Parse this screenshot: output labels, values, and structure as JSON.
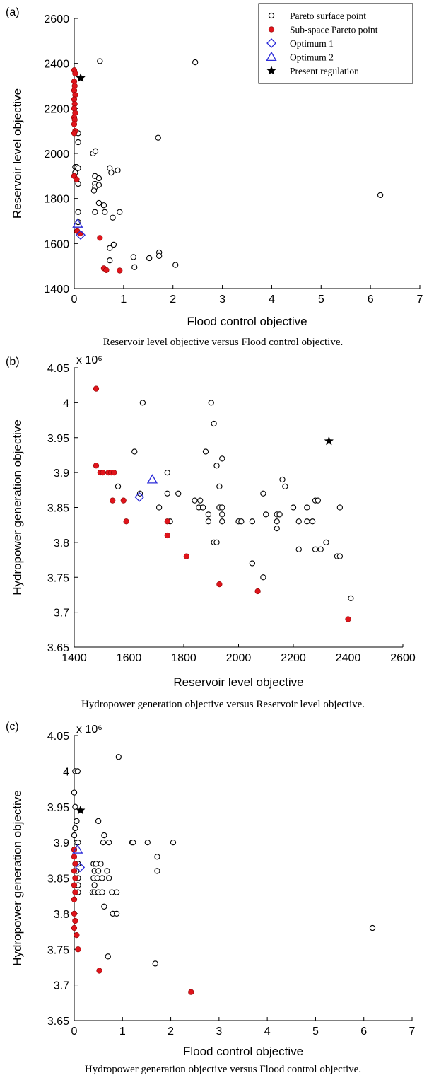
{
  "chart_data": [
    {
      "type": "scatter",
      "panel_label": "(a)",
      "xlabel": "Flood control objective",
      "ylabel": "Reservoir level objective",
      "xlim": [
        0,
        7
      ],
      "ylim": [
        1400,
        2600
      ],
      "xticks": [
        0,
        1,
        2,
        3,
        4,
        5,
        6,
        7
      ],
      "yticks": [
        1400,
        1600,
        1800,
        2000,
        2200,
        2400,
        2600
      ],
      "multiplier": "",
      "caption": "Reservoir level objective versus Flood control objective.",
      "legend": {
        "placement": "top-right",
        "entries": [
          "Pareto surface point",
          "Sub-space Pareto point",
          "Optimum 1",
          "Optimum 2",
          "Present regulation"
        ]
      },
      "series": [
        {
          "name": "Pareto surface point",
          "marker": "open-circle",
          "color": "#000000",
          "points": [
            [
              0.52,
              2410
            ],
            [
              2.45,
              2405
            ],
            [
              1.7,
              2070
            ],
            [
              0.08,
              2090
            ],
            [
              0.08,
              2050
            ],
            [
              0.38,
              2000
            ],
            [
              0.43,
              2010
            ],
            [
              0.02,
              1940
            ],
            [
              0.05,
              1940
            ],
            [
              0.08,
              1935
            ],
            [
              0.02,
              1915
            ],
            [
              0.08,
              1865
            ],
            [
              0.42,
              1900
            ],
            [
              0.5,
              1890
            ],
            [
              0.42,
              1865
            ],
            [
              0.42,
              1850
            ],
            [
              0.4,
              1835
            ],
            [
              0.5,
              1860
            ],
            [
              0.72,
              1935
            ],
            [
              0.75,
              1915
            ],
            [
              0.88,
              1925
            ],
            [
              0.42,
              1740
            ],
            [
              0.5,
              1780
            ],
            [
              0.6,
              1770
            ],
            [
              0.62,
              1740
            ],
            [
              0.78,
              1715
            ],
            [
              0.92,
              1740
            ],
            [
              0.08,
              1740
            ],
            [
              0.08,
              1695
            ],
            [
              0.72,
              1580
            ],
            [
              0.8,
              1595
            ],
            [
              0.72,
              1525
            ],
            [
              1.2,
              1540
            ],
            [
              1.22,
              1495
            ],
            [
              1.52,
              1535
            ],
            [
              1.72,
              1560
            ],
            [
              1.72,
              1545
            ],
            [
              2.05,
              1505
            ],
            [
              6.2,
              1815
            ]
          ]
        },
        {
          "name": "Sub-space Pareto point",
          "marker": "filled-circle",
          "color": "#e0141b",
          "points": [
            [
              0.0,
              2370
            ],
            [
              0.02,
              2355
            ],
            [
              0.0,
              2320
            ],
            [
              0.01,
              2300
            ],
            [
              0.0,
              2280
            ],
            [
              0.02,
              2260
            ],
            [
              0.0,
              2240
            ],
            [
              0.01,
              2220
            ],
            [
              0.0,
              2200
            ],
            [
              0.02,
              2180
            ],
            [
              0.0,
              2160
            ],
            [
              0.01,
              2150
            ],
            [
              0.0,
              2130
            ],
            [
              0.02,
              2100
            ],
            [
              0.0,
              2090
            ],
            [
              0.0,
              1900
            ],
            [
              0.05,
              1885
            ],
            [
              0.06,
              1655
            ],
            [
              0.12,
              1645
            ],
            [
              0.52,
              1625
            ],
            [
              0.6,
              1490
            ],
            [
              0.65,
              1482
            ],
            [
              0.92,
              1480
            ]
          ]
        },
        {
          "name": "Optimum 1",
          "marker": "open-diamond",
          "color": "#2b2bd9",
          "points": [
            [
              0.13,
              1638
            ]
          ]
        },
        {
          "name": "Optimum 2",
          "marker": "open-triangle",
          "color": "#2b2bd9",
          "points": [
            [
              0.07,
              1688
            ]
          ]
        },
        {
          "name": "Present regulation",
          "marker": "star",
          "color": "#000000",
          "points": [
            [
              0.13,
              2335
            ]
          ]
        }
      ]
    },
    {
      "type": "scatter",
      "panel_label": "(b)",
      "xlabel": "Reservoir level objective",
      "ylabel": "Hydropower generation objective",
      "xlim": [
        1400,
        2600
      ],
      "ylim": [
        3.65,
        4.05
      ],
      "xticks": [
        1400,
        1600,
        1800,
        2000,
        2200,
        2400,
        2600
      ],
      "yticks": [
        "3.65",
        "3.7",
        "3.75",
        "3.8",
        "3.85",
        "3.9",
        "3.95",
        "4",
        "4.05"
      ],
      "multiplier": "x 10⁶",
      "caption": "Hydropower generation objective versus Reservoir level objective.",
      "series": [
        {
          "name": "Pareto surface point",
          "marker": "open-circle",
          "color": "#000000",
          "points": [
            [
              1650,
              4.0
            ],
            [
              1900,
              4.0
            ],
            [
              1910,
              3.97
            ],
            [
              1620,
              3.93
            ],
            [
              1880,
              3.93
            ],
            [
              1940,
              3.92
            ],
            [
              1920,
              3.91
            ],
            [
              1740,
              3.9
            ],
            [
              1560,
              3.88
            ],
            [
              1640,
              3.87
            ],
            [
              1740,
              3.87
            ],
            [
              1780,
              3.87
            ],
            [
              1840,
              3.86
            ],
            [
              1860,
              3.86
            ],
            [
              1930,
              3.88
            ],
            [
              1710,
              3.85
            ],
            [
              1855,
              3.85
            ],
            [
              1870,
              3.85
            ],
            [
              1930,
              3.85
            ],
            [
              1940,
              3.85
            ],
            [
              1890,
              3.84
            ],
            [
              1940,
              3.84
            ],
            [
              1750,
              3.83
            ],
            [
              1890,
              3.83
            ],
            [
              1940,
              3.83
            ],
            [
              2000,
              3.83
            ],
            [
              2010,
              3.83
            ],
            [
              2050,
              3.83
            ],
            [
              1910,
              3.8
            ],
            [
              1920,
              3.8
            ],
            [
              2090,
              3.87
            ],
            [
              2100,
              3.84
            ],
            [
              2140,
              3.84
            ],
            [
              2150,
              3.84
            ],
            [
              2140,
              3.83
            ],
            [
              2140,
              3.82
            ],
            [
              2160,
              3.89
            ],
            [
              2170,
              3.88
            ],
            [
              2200,
              3.85
            ],
            [
              2220,
              3.83
            ],
            [
              2250,
              3.85
            ],
            [
              2250,
              3.83
            ],
            [
              2270,
              3.83
            ],
            [
              2280,
              3.86
            ],
            [
              2290,
              3.86
            ],
            [
              2220,
              3.79
            ],
            [
              2280,
              3.79
            ],
            [
              2300,
              3.79
            ],
            [
              2320,
              3.8
            ],
            [
              2370,
              3.85
            ],
            [
              2360,
              3.78
            ],
            [
              2370,
              3.78
            ],
            [
              2050,
              3.77
            ],
            [
              2090,
              3.75
            ],
            [
              2410,
              3.72
            ]
          ]
        },
        {
          "name": "Sub-space Pareto point",
          "marker": "filled-circle",
          "color": "#e0141b",
          "points": [
            [
              1480,
              4.02
            ],
            [
              1480,
              3.91
            ],
            [
              1495,
              3.9
            ],
            [
              1505,
              3.9
            ],
            [
              1525,
              3.9
            ],
            [
              1535,
              3.9
            ],
            [
              1545,
              3.9
            ],
            [
              1540,
              3.86
            ],
            [
              1580,
              3.86
            ],
            [
              1590,
              3.83
            ],
            [
              1740,
              3.83
            ],
            [
              1740,
              3.81
            ],
            [
              1810,
              3.78
            ],
            [
              1930,
              3.74
            ],
            [
              2070,
              3.73
            ],
            [
              2400,
              3.69
            ]
          ]
        },
        {
          "name": "Optimum 1",
          "marker": "open-diamond",
          "color": "#2b2bd9",
          "points": [
            [
              1638,
              3.865
            ]
          ]
        },
        {
          "name": "Optimum 2",
          "marker": "open-triangle",
          "color": "#2b2bd9",
          "points": [
            [
              1685,
              3.89
            ]
          ]
        },
        {
          "name": "Present regulation",
          "marker": "star",
          "color": "#000000",
          "points": [
            [
              2330,
              3.945
            ]
          ]
        }
      ]
    },
    {
      "type": "scatter",
      "panel_label": "(c)",
      "xlabel": "Flood control objective",
      "ylabel": "Hydropower generation objective",
      "xlim": [
        0,
        7
      ],
      "ylim": [
        3.65,
        4.05
      ],
      "xticks": [
        0,
        1,
        2,
        3,
        4,
        5,
        6,
        7
      ],
      "yticks": [
        "3.65",
        "3.7",
        "3.75",
        "3.8",
        "3.85",
        "3.9",
        "3.95",
        "4",
        "4.05"
      ],
      "multiplier": "x 10⁶",
      "caption": "Hydropower generation objective versus Flood control objective.",
      "series": [
        {
          "name": "Pareto surface point",
          "marker": "open-circle",
          "color": "#000000",
          "points": [
            [
              0.02,
              4.0
            ],
            [
              0.07,
              4.0
            ],
            [
              0.0,
              3.97
            ],
            [
              0.02,
              3.95
            ],
            [
              0.05,
              3.93
            ],
            [
              0.02,
              3.92
            ],
            [
              0.0,
              3.91
            ],
            [
              0.05,
              3.9
            ],
            [
              0.08,
              3.9
            ],
            [
              0.08,
              3.87
            ],
            [
              0.05,
              3.86
            ],
            [
              0.08,
              3.85
            ],
            [
              0.08,
              3.84
            ],
            [
              0.08,
              3.83
            ],
            [
              0.92,
              4.02
            ],
            [
              0.5,
              3.93
            ],
            [
              0.6,
              3.9
            ],
            [
              0.62,
              3.91
            ],
            [
              0.72,
              3.9
            ],
            [
              1.2,
              3.9
            ],
            [
              1.22,
              3.9
            ],
            [
              1.52,
              3.9
            ],
            [
              2.05,
              3.9
            ],
            [
              1.72,
              3.88
            ],
            [
              1.72,
              3.86
            ],
            [
              0.4,
              3.87
            ],
            [
              0.45,
              3.87
            ],
            [
              0.55,
              3.87
            ],
            [
              0.42,
              3.86
            ],
            [
              0.5,
              3.86
            ],
            [
              0.68,
              3.86
            ],
            [
              0.4,
              3.85
            ],
            [
              0.48,
              3.85
            ],
            [
              0.58,
              3.85
            ],
            [
              0.72,
              3.85
            ],
            [
              0.42,
              3.84
            ],
            [
              0.38,
              3.83
            ],
            [
              0.42,
              3.83
            ],
            [
              0.5,
              3.83
            ],
            [
              0.58,
              3.83
            ],
            [
              0.78,
              3.83
            ],
            [
              0.88,
              3.83
            ],
            [
              0.62,
              3.81
            ],
            [
              0.8,
              3.8
            ],
            [
              0.88,
              3.8
            ],
            [
              0.7,
              3.74
            ],
            [
              1.68,
              3.73
            ],
            [
              6.18,
              3.78
            ]
          ]
        },
        {
          "name": "Sub-space Pareto point",
          "marker": "filled-circle",
          "color": "#e0141b",
          "points": [
            [
              0.0,
              3.89
            ],
            [
              0.0,
              3.88
            ],
            [
              0.02,
              3.87
            ],
            [
              0.0,
              3.86
            ],
            [
              0.02,
              3.85
            ],
            [
              0.0,
              3.84
            ],
            [
              0.02,
              3.83
            ],
            [
              0.0,
              3.82
            ],
            [
              0.0,
              3.8
            ],
            [
              0.02,
              3.79
            ],
            [
              0.0,
              3.78
            ],
            [
              0.05,
              3.77
            ],
            [
              0.08,
              3.75
            ],
            [
              0.52,
              3.72
            ],
            [
              2.42,
              3.69
            ]
          ]
        },
        {
          "name": "Optimum 1",
          "marker": "open-diamond",
          "color": "#2b2bd9",
          "points": [
            [
              0.12,
              3.865
            ]
          ]
        },
        {
          "name": "Optimum 2",
          "marker": "open-triangle",
          "color": "#2b2bd9",
          "points": [
            [
              0.07,
              3.89
            ]
          ]
        },
        {
          "name": "Present regulation",
          "marker": "star",
          "color": "#000000",
          "points": [
            [
              0.13,
              3.945
            ]
          ]
        }
      ]
    }
  ]
}
